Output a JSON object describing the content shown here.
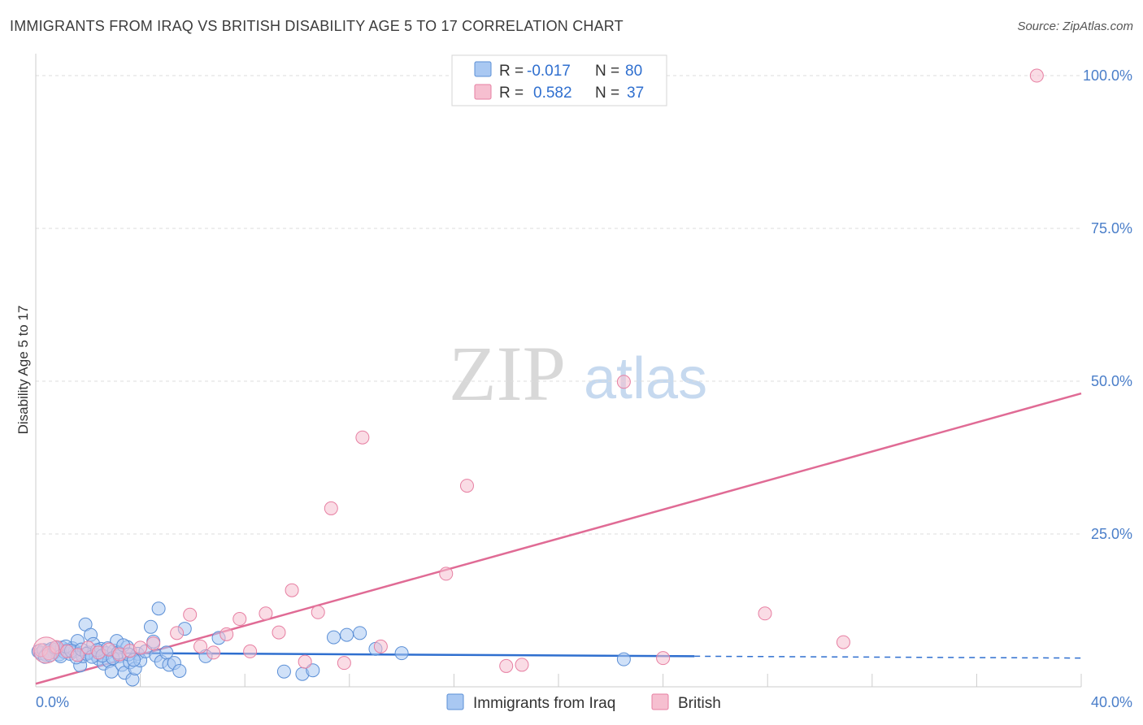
{
  "header": {
    "title": "IMMIGRANTS FROM IRAQ VS BRITISH DISABILITY AGE 5 TO 17 CORRELATION CHART",
    "source": "Source: ZipAtlas.com"
  },
  "watermark": {
    "zip": "ZIP",
    "atlas": "atlas"
  },
  "colors": {
    "blue_fill": "#a9c8f2",
    "blue_stroke": "#5b8fd6",
    "blue_line": "#2f6fcf",
    "pink_fill": "#f6bfd0",
    "pink_stroke": "#e77fa2",
    "pink_line": "#e06b95",
    "tick_text": "#4a7ec9",
    "grid": "#dddddd"
  },
  "stats_legend": {
    "series1": {
      "r_label": "R =",
      "r_value": "-0.017",
      "n_label": "N =",
      "n_value": "80"
    },
    "series2": {
      "r_label": "R =",
      "r_value": "0.582",
      "n_label": "N =",
      "n_value": "37"
    }
  },
  "chart_data": {
    "type": "scatter",
    "title": "IMMIGRANTS FROM IRAQ VS BRITISH DISABILITY AGE 5 TO 17 CORRELATION CHART",
    "xlabel": "",
    "ylabel": "Disability Age 5 to 17",
    "xlim": [
      0,
      40
    ],
    "ylim": [
      0,
      102
    ],
    "x_tick_labels": [
      {
        "value": 0,
        "label": "0.0%"
      },
      {
        "value": 40,
        "label": "40.0%"
      }
    ],
    "y_tick_labels": [
      {
        "value": 25,
        "label": "25.0%"
      },
      {
        "value": 50,
        "label": "50.0%"
      },
      {
        "value": 75,
        "label": "75.0%"
      },
      {
        "value": 100,
        "label": "100.0%"
      }
    ],
    "grid": true,
    "legend_position": "bottom-center",
    "series": [
      {
        "name": "Immigrants from Iraq",
        "color": "#a9c8f2",
        "r": -0.017,
        "n": 80,
        "trend": {
          "x0": 0,
          "y0": 5.6,
          "x1": 25.2,
          "y1": 5.0,
          "dashed_to_x": 40,
          "dashed_to_y": 4.7
        },
        "points": [
          [
            0.1,
            5.8
          ],
          [
            0.2,
            5.5
          ],
          [
            0.3,
            6.0
          ],
          [
            0.4,
            5.2
          ],
          [
            0.5,
            5.9
          ],
          [
            0.6,
            6.2
          ],
          [
            0.7,
            5.6
          ],
          [
            0.8,
            6.1
          ],
          [
            0.9,
            5.3
          ],
          [
            1.0,
            6.4
          ],
          [
            1.1,
            5.7
          ],
          [
            1.2,
            6.0
          ],
          [
            1.3,
            5.4
          ],
          [
            1.4,
            6.3
          ],
          [
            1.5,
            5.8
          ],
          [
            1.6,
            7.5
          ],
          [
            1.7,
            3.5
          ],
          [
            1.8,
            5.0
          ],
          [
            1.9,
            10.2
          ],
          [
            2.0,
            5.6
          ],
          [
            2.1,
            8.5
          ],
          [
            2.2,
            7.0
          ],
          [
            2.3,
            5.2
          ],
          [
            2.4,
            4.6
          ],
          [
            2.5,
            6.2
          ],
          [
            2.6,
            3.8
          ],
          [
            2.7,
            5.5
          ],
          [
            2.8,
            4.2
          ],
          [
            2.9,
            2.5
          ],
          [
            3.0,
            5.9
          ],
          [
            3.1,
            7.5
          ],
          [
            3.2,
            5.0
          ],
          [
            3.3,
            3.6
          ],
          [
            3.4,
            2.3
          ],
          [
            3.5,
            6.5
          ],
          [
            3.6,
            4.0
          ],
          [
            3.7,
            1.2
          ],
          [
            3.8,
            3.0
          ],
          [
            3.9,
            5.4
          ],
          [
            4.0,
            4.3
          ],
          [
            4.2,
            5.8
          ],
          [
            4.4,
            9.8
          ],
          [
            4.5,
            7.4
          ],
          [
            4.6,
            5.1
          ],
          [
            4.7,
            12.8
          ],
          [
            4.8,
            4.1
          ],
          [
            5.0,
            5.6
          ],
          [
            5.1,
            3.6
          ],
          [
            5.3,
            3.9
          ],
          [
            5.5,
            2.6
          ],
          [
            5.7,
            9.5
          ],
          [
            6.5,
            5.0
          ],
          [
            7.0,
            8.0
          ],
          [
            9.5,
            2.5
          ],
          [
            10.2,
            2.1
          ],
          [
            10.6,
            2.7
          ],
          [
            11.4,
            8.1
          ],
          [
            11.9,
            8.5
          ],
          [
            12.4,
            8.8
          ],
          [
            13.0,
            6.2
          ],
          [
            14.0,
            5.5
          ],
          [
            22.5,
            4.5
          ],
          [
            0.35,
            4.9
          ],
          [
            0.55,
            5.2
          ],
          [
            0.75,
            6.4
          ],
          [
            0.95,
            5.0
          ],
          [
            1.15,
            6.6
          ],
          [
            1.35,
            5.9
          ],
          [
            1.55,
            4.8
          ],
          [
            1.75,
            6.1
          ],
          [
            1.95,
            5.4
          ],
          [
            2.15,
            4.9
          ],
          [
            2.35,
            6.0
          ],
          [
            2.55,
            5.1
          ],
          [
            2.75,
            6.3
          ],
          [
            2.95,
            4.7
          ],
          [
            3.15,
            5.6
          ],
          [
            3.35,
            6.8
          ],
          [
            3.55,
            5.3
          ],
          [
            3.75,
            4.4
          ]
        ]
      },
      {
        "name": "British",
        "color": "#f6bfd0",
        "r": 0.582,
        "n": 37,
        "trend": {
          "x0": 0,
          "y0": 0.5,
          "x1": 40,
          "y1": 48.0
        },
        "points": [
          [
            0.2,
            6.0
          ],
          [
            0.5,
            5.5
          ],
          [
            0.8,
            6.5
          ],
          [
            1.2,
            5.8
          ],
          [
            1.6,
            5.2
          ],
          [
            2.0,
            6.4
          ],
          [
            2.4,
            5.6
          ],
          [
            2.8,
            6.1
          ],
          [
            3.2,
            5.3
          ],
          [
            3.6,
            5.9
          ],
          [
            4.0,
            6.4
          ],
          [
            4.5,
            7.1
          ],
          [
            5.4,
            8.8
          ],
          [
            5.9,
            11.8
          ],
          [
            6.3,
            6.6
          ],
          [
            6.8,
            5.6
          ],
          [
            7.3,
            8.6
          ],
          [
            7.8,
            11.1
          ],
          [
            8.2,
            5.8
          ],
          [
            8.8,
            12.0
          ],
          [
            9.3,
            8.9
          ],
          [
            9.8,
            15.8
          ],
          [
            10.3,
            4.1
          ],
          [
            10.8,
            12.2
          ],
          [
            11.3,
            29.2
          ],
          [
            11.8,
            3.9
          ],
          [
            12.5,
            40.8
          ],
          [
            13.2,
            6.6
          ],
          [
            15.7,
            18.5
          ],
          [
            16.5,
            32.9
          ],
          [
            18.0,
            3.4
          ],
          [
            18.6,
            3.6
          ],
          [
            22.5,
            49.9
          ],
          [
            24.0,
            4.7
          ],
          [
            27.9,
            12.0
          ],
          [
            30.9,
            7.3
          ],
          [
            38.3,
            100.0
          ]
        ]
      }
    ]
  },
  "bottom_legend": [
    {
      "label": "Immigrants from Iraq",
      "color": "#a9c8f2"
    },
    {
      "label": "British",
      "color": "#f6bfd0"
    }
  ]
}
